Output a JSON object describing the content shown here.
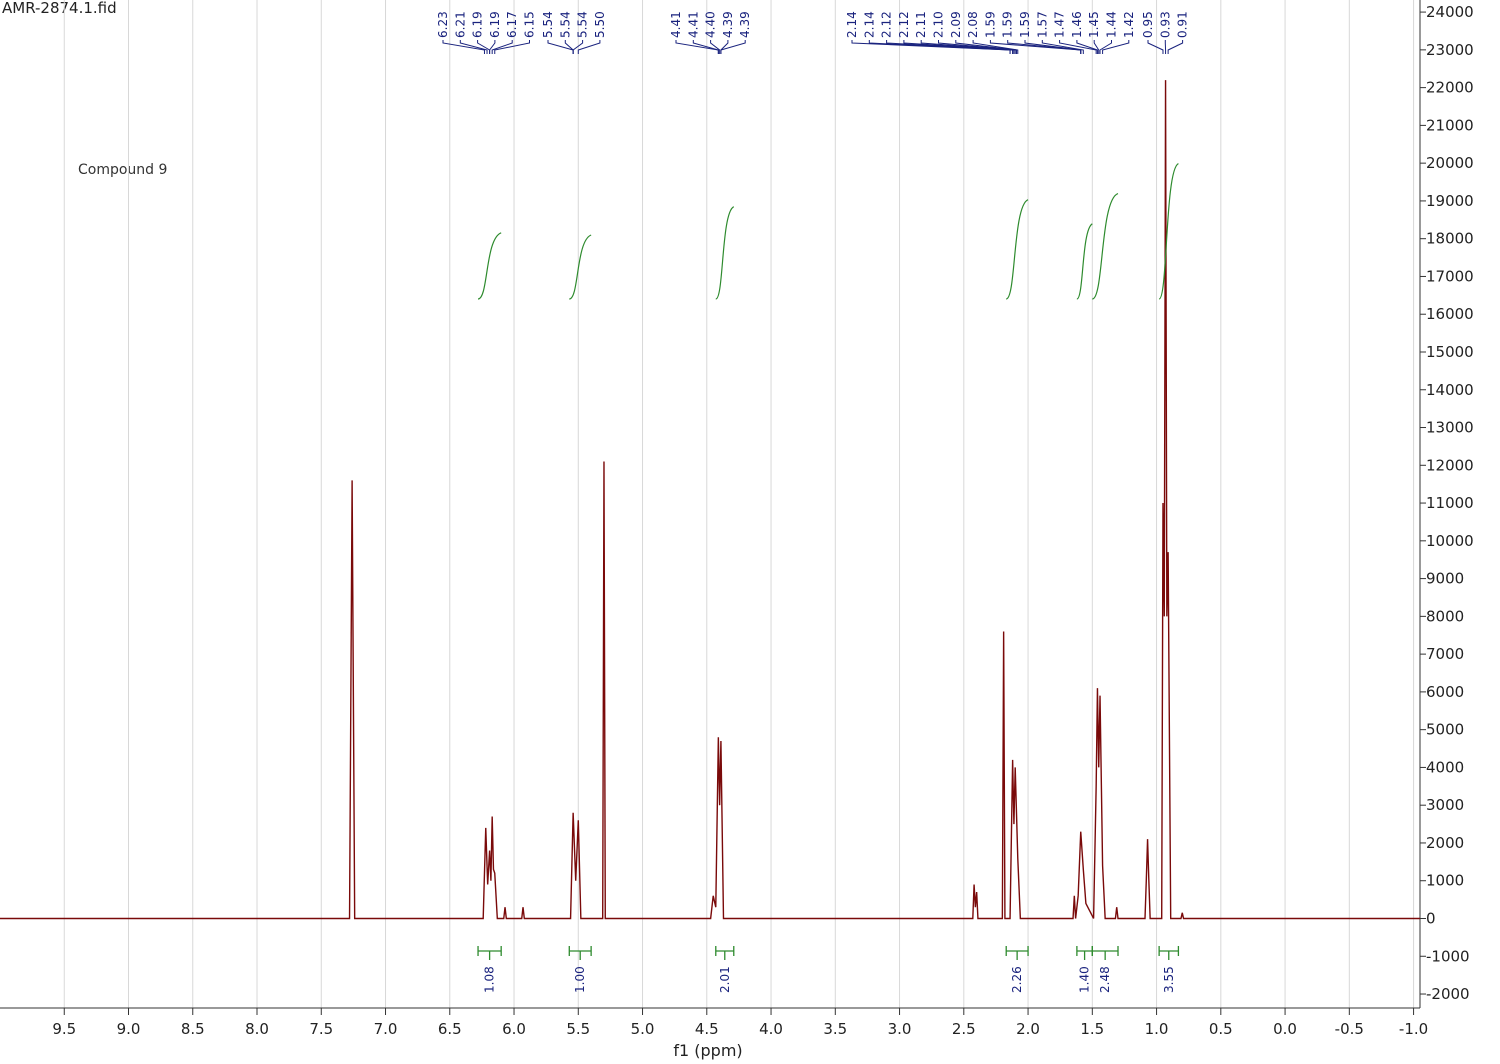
{
  "chart_data": {
    "type": "line",
    "title": "AMR-2874.1.fid",
    "annotation": "Compound 9",
    "x_label": "f1 (ppm)",
    "xlim": [
      10.0,
      -1.05
    ],
    "xticks": [
      9.5,
      {
        "value": 9,
        "label": "9.0"
      },
      8.5,
      {
        "value": 8,
        "label": "8.0"
      },
      7.5,
      {
        "value": 7,
        "label": "7.0"
      },
      6.5,
      {
        "value": 6,
        "label": "6.0"
      },
      5.5,
      {
        "value": 5,
        "label": "5.0"
      },
      4.5,
      {
        "value": 4,
        "label": "4.0"
      },
      3.5,
      {
        "value": 3,
        "label": "3.0"
      },
      2.5,
      {
        "value": 2,
        "label": "2.0"
      },
      1.5,
      {
        "value": 1,
        "label": "1.0"
      },
      0.5,
      {
        "value": 0,
        "label": "0.0"
      },
      -0.5,
      {
        "value": -1,
        "label": "-1.0"
      }
    ],
    "ylim": [
      -2370,
      24320
    ],
    "yticks": [
      -2000,
      -1000,
      0,
      1000,
      2000,
      3000,
      4000,
      5000,
      6000,
      7000,
      8000,
      9000,
      10000,
      11000,
      12000,
      13000,
      14000,
      15000,
      16000,
      17000,
      18000,
      19000,
      20000,
      21000,
      22000,
      23000,
      24000
    ],
    "grid": "x",
    "color": "#7a0a0a",
    "x": [
      10.0,
      7.28,
      7.26,
      7.24,
      6.24,
      6.22,
      6.205,
      6.19,
      6.18,
      6.17,
      6.16,
      6.15,
      6.13,
      6.08,
      6.07,
      6.06,
      5.94,
      5.93,
      5.92,
      5.56,
      5.54,
      5.52,
      5.5,
      5.48,
      5.31,
      5.3,
      5.29,
      4.47,
      4.45,
      4.43,
      4.41,
      4.4,
      4.39,
      4.37,
      2.43,
      2.42,
      2.41,
      2.4,
      2.39,
      2.2,
      2.19,
      2.18,
      2.14,
      2.12,
      2.11,
      2.1,
      2.08,
      2.06,
      1.65,
      1.64,
      1.63,
      1.61,
      1.59,
      1.57,
      1.55,
      1.49,
      1.47,
      1.46,
      1.45,
      1.44,
      1.42,
      1.4,
      1.32,
      1.31,
      1.3,
      1.09,
      1.08,
      1.07,
      1.06,
      1.05,
      0.96,
      0.95,
      0.94,
      0.93,
      0.92,
      0.91,
      0.89,
      0.81,
      0.8,
      0.79,
      -1.05
    ],
    "values": [
      0,
      0,
      11600,
      0,
      0,
      2400,
      900,
      1800,
      1000,
      2700,
      1300,
      1200,
      0,
      0,
      300,
      0,
      0,
      300,
      0,
      0,
      2800,
      1000,
      2600,
      0,
      0,
      12100,
      0,
      0,
      600,
      300,
      4800,
      3000,
      4700,
      0,
      0,
      900,
      300,
      700,
      0,
      0,
      7600,
      0,
      0,
      4200,
      2500,
      4000,
      1600,
      0,
      0,
      600,
      0,
      600,
      2300,
      1300,
      400,
      0,
      3500,
      6100,
      4000,
      5900,
      1400,
      0,
      0,
      300,
      0,
      0,
      1000,
      2100,
      1000,
      0,
      0,
      11000,
      8000,
      22200,
      8000,
      9700,
      0,
      0,
      150,
      0,
      0
    ],
    "peak_groups": [
      [
        {
          "value": 6.23,
          "label": "6.23"
        },
        {
          "value": 6.21,
          "label": "6.21"
        },
        {
          "value": 6.19,
          "label": "6.19"
        },
        {
          "value": 6.19,
          "label": "6.19"
        },
        {
          "value": 6.17,
          "label": "6.17"
        },
        {
          "value": 6.15,
          "label": "6.15"
        }
      ],
      [
        {
          "value": 5.54,
          "label": "5.54"
        },
        {
          "value": 5.54,
          "label": "5.54"
        },
        {
          "value": 5.54,
          "label": "5.54"
        },
        {
          "value": 5.5,
          "label": "5.50"
        }
      ],
      [
        {
          "value": 4.41,
          "label": "4.41"
        },
        {
          "value": 4.41,
          "label": "4.41"
        },
        {
          "value": 4.4,
          "label": "4.40"
        },
        {
          "value": 4.39,
          "label": "4.39"
        },
        {
          "value": 4.39,
          "label": "4.39"
        }
      ],
      [
        {
          "value": 2.14,
          "label": "2.14"
        },
        {
          "value": 2.14,
          "label": "2.14"
        },
        {
          "value": 2.12,
          "label": "2.12"
        },
        {
          "value": 2.12,
          "label": "2.12"
        },
        {
          "value": 2.11,
          "label": "2.11"
        },
        {
          "value": 2.1,
          "label": "2.10"
        },
        {
          "value": 2.09,
          "label": "2.09"
        },
        {
          "value": 2.08,
          "label": "2.08"
        },
        {
          "value": 1.59,
          "label": "1.59"
        },
        {
          "value": 1.59,
          "label": "1.59"
        },
        {
          "value": 1.59,
          "label": "1.59"
        },
        {
          "value": 1.57,
          "label": "1.57"
        },
        {
          "value": 1.47,
          "label": "1.47"
        },
        {
          "value": 1.46,
          "label": "1.46"
        },
        {
          "value": 1.45,
          "label": "1.45"
        },
        {
          "value": 1.44,
          "label": "1.44"
        },
        {
          "value": 1.42,
          "label": "1.42"
        }
      ],
      [
        {
          "value": 0.95,
          "label": "0.95"
        },
        {
          "value": 0.93,
          "label": "0.93"
        },
        {
          "value": 0.91,
          "label": "0.91"
        }
      ]
    ],
    "integrals": {
      "ranges": [
        [
          6.28,
          6.1
        ],
        [
          5.57,
          5.4
        ],
        [
          4.43,
          4.29
        ],
        [
          2.17,
          2.0
        ],
        [
          1.62,
          1.5
        ],
        [
          1.5,
          1.3
        ],
        [
          0.98,
          0.83
        ]
      ],
      "values": [
        1.08,
        1,
        2.01,
        2.26,
        1.4,
        2.48,
        3.55
      ],
      "value_labels": [
        "1.08",
        "1.00",
        "2.01",
        "2.26",
        "1.40",
        "2.48",
        "3.55"
      ]
    }
  }
}
